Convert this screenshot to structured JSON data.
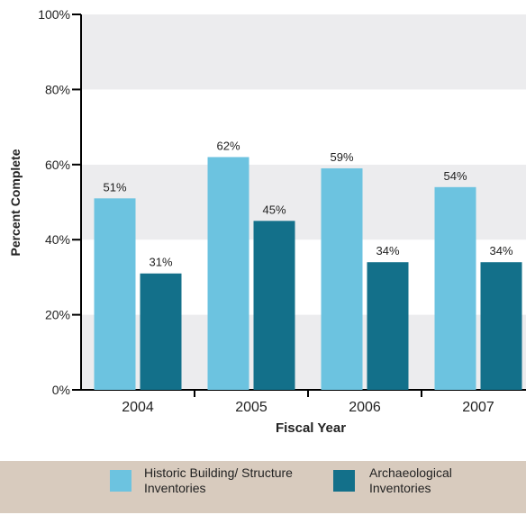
{
  "chart_data": {
    "type": "bar",
    "xlabel": "Fiscal Year",
    "ylabel": "Percent Complete",
    "categories": [
      "2004",
      "2005",
      "2006",
      "2007"
    ],
    "series": [
      {
        "name": "Historic Building/ Structure Inventories",
        "color": "#6cc3e0",
        "values": [
          51,
          62,
          59,
          54
        ],
        "value_labels": [
          "51%",
          "62%",
          "59%",
          "54%"
        ]
      },
      {
        "name": "Archaeological Inventories",
        "color": "#13708a",
        "values": [
          31,
          45,
          34,
          34
        ],
        "value_labels": [
          "31%",
          "45%",
          "34%",
          "34%"
        ]
      }
    ],
    "ylim": [
      0,
      100
    ],
    "yticks": [
      {
        "value": 0,
        "label": "0%"
      },
      {
        "value": 20,
        "label": "20%"
      },
      {
        "value": 40,
        "label": "40%"
      },
      {
        "value": 60,
        "label": "60%"
      },
      {
        "value": 80,
        "label": "80%"
      },
      {
        "value": 100,
        "label": "100%"
      }
    ],
    "legend": "bottom"
  }
}
